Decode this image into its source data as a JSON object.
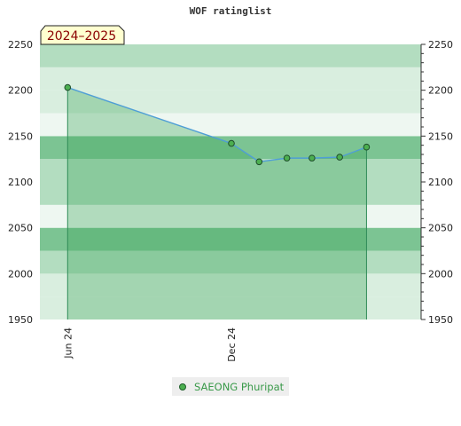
{
  "chart_data": {
    "type": "area",
    "title": "WOF ratinglist",
    "badge": "2024–2025",
    "ylim": [
      1950,
      2250
    ],
    "y_ticks": [
      1950,
      2000,
      2050,
      2100,
      2150,
      2200,
      2250
    ],
    "x_ticks": [
      "Jun 24",
      "Dec 24"
    ],
    "series": [
      {
        "name": "SAEONG Phuripat",
        "points": [
          {
            "date": "2024-06-01",
            "value": 2203
          },
          {
            "date": "2024-12-01",
            "value": 2142
          },
          {
            "date": "2025-01-01",
            "value": 2122
          },
          {
            "date": "2025-02-01",
            "value": 2126
          },
          {
            "date": "2025-03-01",
            "value": 2126
          },
          {
            "date": "2025-04-01",
            "value": 2127
          },
          {
            "date": "2025-05-01",
            "value": 2138
          }
        ]
      }
    ],
    "colors": {
      "band_dark": "#7cc493",
      "band_mid": "#b3ddc0",
      "band_light": "#d9eedf",
      "band_pale": "#eef7f1",
      "area_fill": "#3fa75d",
      "line": "#4f9ed6",
      "marker": "#4caf50",
      "badge_bg": "#ffffd0",
      "badge_text": "#8b0000"
    },
    "legend_position": "bottom-center"
  }
}
